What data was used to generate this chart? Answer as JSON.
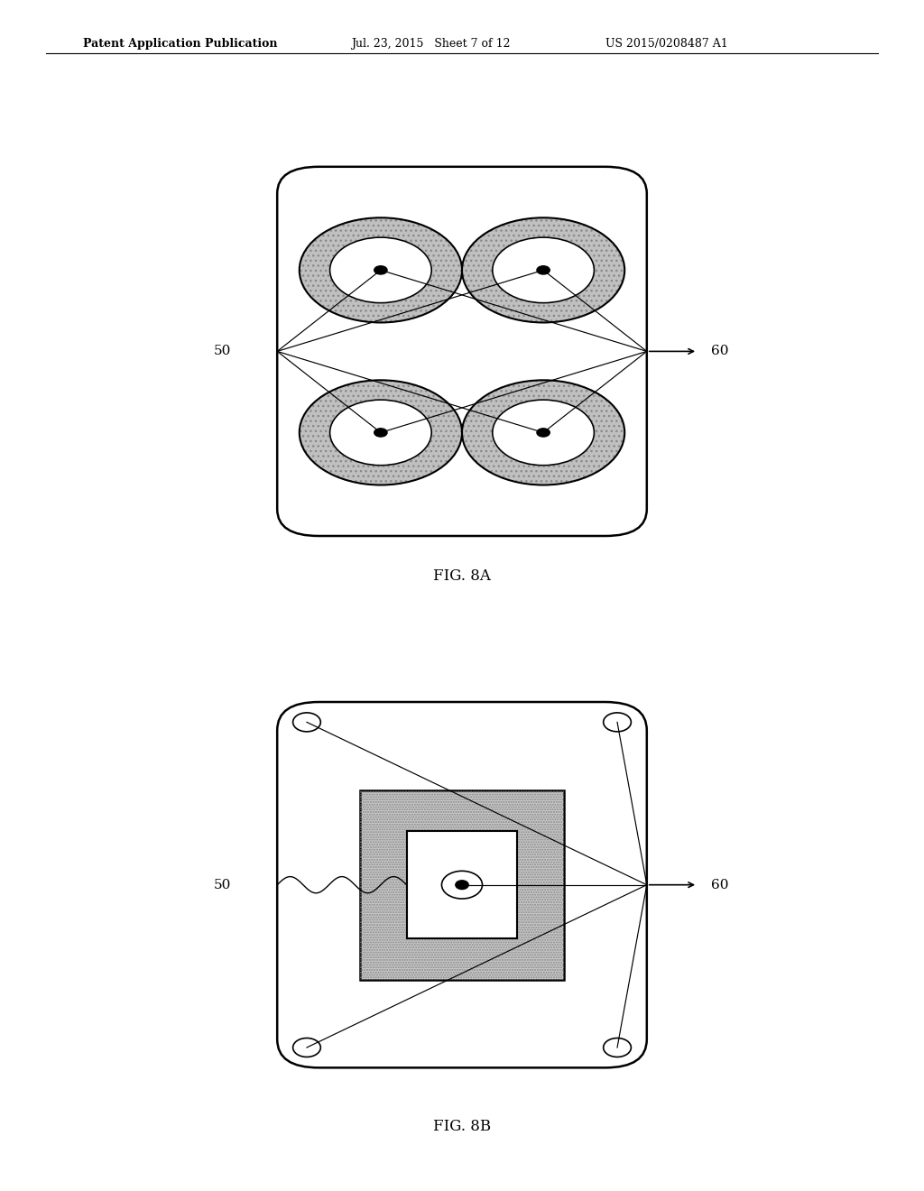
{
  "bg_color": "#ffffff",
  "header": {
    "left": "Patent Application Publication",
    "mid": "Jul. 23, 2015   Sheet 7 of 12",
    "right": "US 2015/0208487 A1"
  },
  "fig8a_label": "FIG. 8A",
  "fig8b_label": "FIG. 8B",
  "hatch_color": "#aaaaaa",
  "gray_fill": "#c8c8c8",
  "dot_fill": "#d0d0d0"
}
